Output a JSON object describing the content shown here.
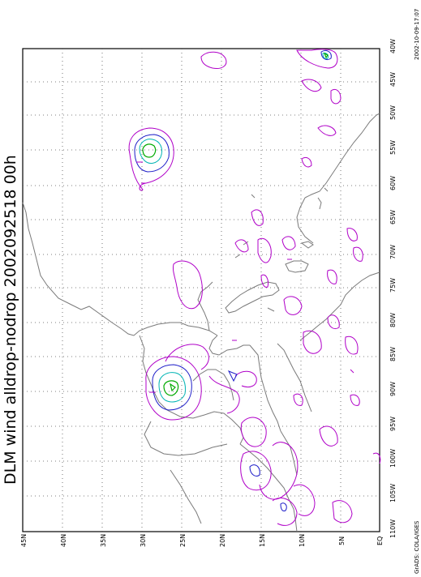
{
  "title": "DLM wind alldrop-nodrop 2002092518 00h",
  "timestamp": "2002-10-09-17:07",
  "credit": "GrADS: COLA/IGES",
  "lon_labels": [
    "40W",
    "45W",
    "50W",
    "55W",
    "60W",
    "65W",
    "70W",
    "75W",
    "80W",
    "85W",
    "90W",
    "95W",
    "100W",
    "105W",
    "110W"
  ],
  "lat_labels": [
    "EQ",
    "5N",
    "10N",
    "15N",
    "20N",
    "25N",
    "30N",
    "35N",
    "40N",
    "45N"
  ],
  "colors": {
    "frame": "#000000",
    "grid": "#555555",
    "coast": "#7a7a7a",
    "contour_outer": "#b000c8",
    "contour_mid": "#1c1cc8",
    "contour_inner": "#00b4b4",
    "contour_core": "#00aa00"
  }
}
